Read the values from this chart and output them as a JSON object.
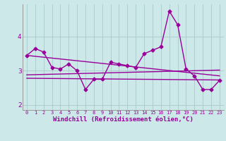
{
  "x": [
    0,
    1,
    2,
    3,
    4,
    5,
    6,
    7,
    8,
    9,
    10,
    11,
    12,
    13,
    14,
    15,
    16,
    17,
    18,
    19,
    20,
    21,
    22,
    23
  ],
  "line1": [
    3.45,
    3.65,
    3.55,
    3.1,
    3.05,
    3.2,
    3.0,
    2.45,
    2.75,
    2.75,
    3.25,
    3.2,
    3.15,
    3.1,
    3.5,
    3.6,
    3.7,
    4.75,
    4.35,
    3.05,
    2.85,
    2.45,
    2.45,
    2.72
  ],
  "line_flat": [
    [
      0,
      23
    ],
    [
      2.78,
      2.73
    ]
  ],
  "line_decl": [
    [
      0,
      23
    ],
    [
      3.45,
      2.85
    ]
  ],
  "line_rise": [
    [
      0,
      23
    ],
    [
      2.88,
      3.02
    ]
  ],
  "bg_color": "#cce8e8",
  "line_color": "#990099",
  "grid_color": "#aacaca",
  "xlabel": "Windchill (Refroidissement éolien,°C)",
  "ylim": [
    1.85,
    4.95
  ],
  "xlim": [
    -0.5,
    23.5
  ],
  "yticks": [
    2,
    3,
    4
  ],
  "xticks": [
    0,
    1,
    2,
    3,
    4,
    5,
    6,
    7,
    8,
    9,
    10,
    11,
    12,
    13,
    14,
    15,
    16,
    17,
    18,
    19,
    20,
    21,
    22,
    23
  ],
  "marker": "D",
  "markersize": 2.5,
  "linewidth": 1.0,
  "title_fontsize": 7,
  "xlabel_fontsize": 6.5,
  "xtick_fontsize": 5.0,
  "ytick_fontsize": 6.5
}
